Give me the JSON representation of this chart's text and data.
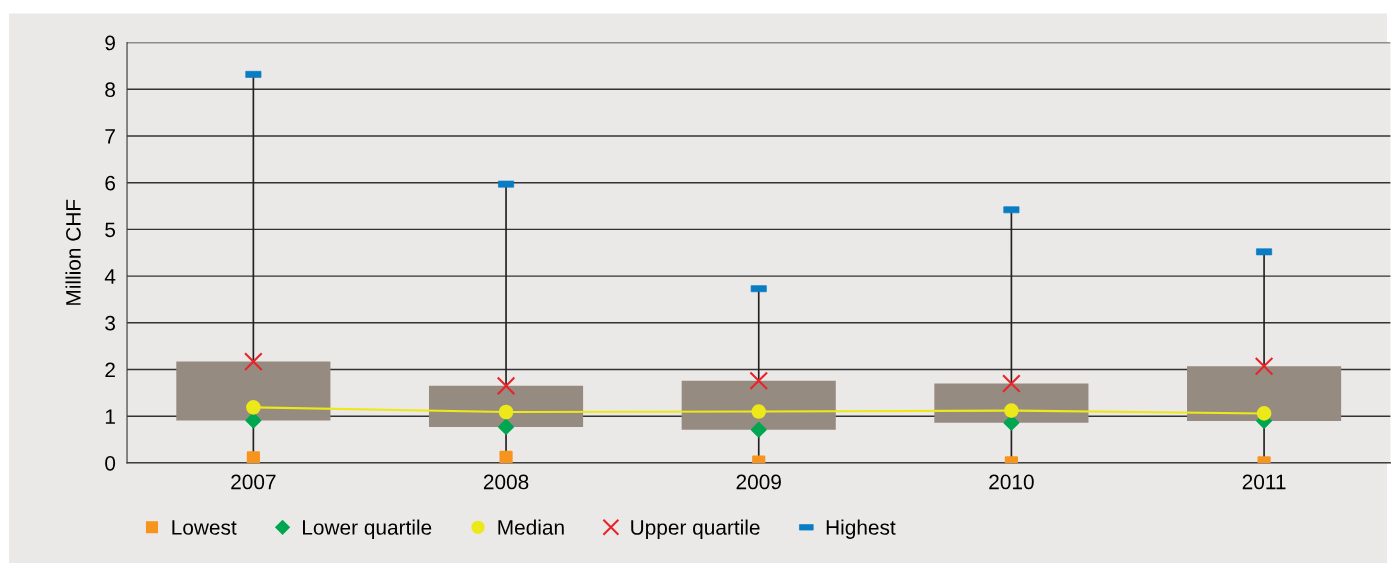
{
  "chart_data": {
    "type": "box",
    "ylabel": "Million CHF",
    "categories": [
      "2007",
      "2008",
      "2009",
      "2010",
      "2011"
    ],
    "boxes": [
      {
        "low": 0.11,
        "q1": 0.91,
        "q3": 2.17,
        "high": 8.32
      },
      {
        "low": 0.12,
        "q1": 0.77,
        "q3": 1.65,
        "high": 5.97
      },
      {
        "low": 0.02,
        "q1": 0.71,
        "q3": 1.76,
        "high": 3.73
      },
      {
        "low": 0.0,
        "q1": 0.86,
        "q3": 1.7,
        "high": 5.42
      },
      {
        "low": 0.0,
        "q1": 0.9,
        "q3": 2.07,
        "high": 4.52
      }
    ],
    "color": "#968b80",
    "series": [
      {
        "name": "Lowest",
        "type": "scatter",
        "marker": "square",
        "color": "#f7941d",
        "values": [
          0.11,
          0.12,
          0.02,
          0.0,
          0.0
        ]
      },
      {
        "name": "Lower quartile",
        "type": "scatter",
        "marker": "diamond",
        "color": "#00a650",
        "values": [
          0.91,
          0.77,
          0.71,
          0.86,
          0.9
        ]
      },
      {
        "name": "Median",
        "type": "line",
        "marker": "circle",
        "color": "#ece81a",
        "values": [
          1.19,
          1.09,
          1.1,
          1.12,
          1.06
        ]
      },
      {
        "name": "Upper quartile",
        "type": "scatter",
        "marker": "cross",
        "color": "#e8242a",
        "values": [
          2.17,
          1.65,
          1.76,
          1.7,
          2.07
        ]
      },
      {
        "name": "Highest",
        "type": "scatter",
        "color": "#0a7cc4",
        "values": [
          8.32,
          5.97,
          3.73,
          5.42,
          4.52
        ]
      }
    ],
    "ylim": [
      0,
      9
    ],
    "yticks": [
      0,
      1,
      2,
      3,
      4,
      5,
      6,
      7,
      8,
      9
    ],
    "grid": "y",
    "legend": "bottom left"
  }
}
